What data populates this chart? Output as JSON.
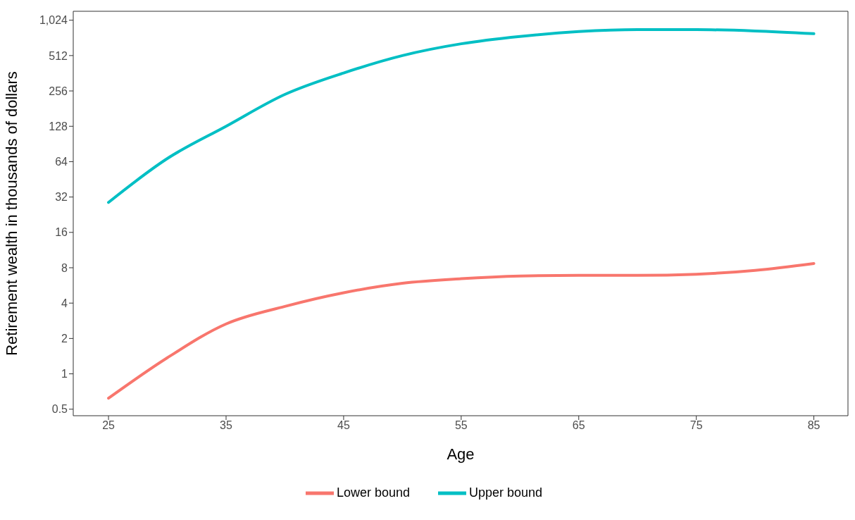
{
  "chart_data": {
    "type": "line",
    "xlabel": "Age",
    "ylabel": "Retirement wealth in thousands of dollars",
    "x": [
      25,
      30,
      35,
      40,
      45,
      50,
      55,
      60,
      65,
      70,
      75,
      80,
      85
    ],
    "series": [
      {
        "name": "Lower bound",
        "color": "#f8766d",
        "values": [
          0.62,
          1.37,
          2.66,
          3.75,
          4.9,
          5.9,
          6.45,
          6.8,
          6.9,
          6.9,
          7.05,
          7.6,
          8.7
        ]
      },
      {
        "name": "Upper bound",
        "color": "#00bfc4",
        "values": [
          28.8,
          68,
          128,
          239,
          364,
          512,
          645,
          745,
          819,
          851,
          851,
          830,
          786
        ]
      }
    ],
    "xlim": [
      22,
      87.9
    ],
    "xticks": [
      25,
      35,
      45,
      55,
      65,
      75,
      85
    ],
    "ylim": [
      0.44,
      1220
    ],
    "yticks": [
      0.5,
      1,
      2,
      4,
      8,
      16,
      32,
      64,
      128,
      256,
      512,
      {
        "value": 1024,
        "label": "1,024"
      }
    ],
    "log": "y",
    "legend": "bottom",
    "marker": "none",
    "line_style": "solid"
  }
}
